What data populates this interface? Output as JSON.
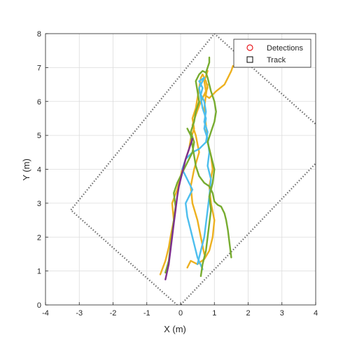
{
  "chart_data": {
    "type": "line",
    "xlabel": "X (m)",
    "ylabel": "Y (m)",
    "xlim": [
      -4,
      4
    ],
    "ylim": [
      0,
      8
    ],
    "xticks": [
      "-4",
      "-3",
      "-2",
      "-1",
      "0",
      "1",
      "2",
      "3",
      "4"
    ],
    "yticks": [
      "0",
      "1",
      "2",
      "3",
      "4",
      "5",
      "6",
      "7",
      "8"
    ],
    "grid": true,
    "legend": {
      "placement": "top-right",
      "entries": [
        {
          "label": "Detections",
          "marker": "circle",
          "color": "#e8191e"
        },
        {
          "label": "Track",
          "marker": "square",
          "color": "#000000"
        }
      ]
    },
    "coverage_boundary": {
      "style": "dotted",
      "color": "#6e6e6e",
      "x": [
        -0.05,
        4.6,
        1.0,
        -3.25,
        -0.05
      ],
      "y": [
        -0.05,
        4.8,
        8.0,
        2.8,
        -0.05
      ]
    },
    "series": [
      {
        "color": "#edb120",
        "x": [
          -0.6,
          -0.45,
          -0.35,
          -0.3,
          -0.2,
          -0.25,
          -0.1,
          0.0,
          0.05,
          0.15,
          0.25,
          0.3,
          0.4,
          0.35,
          0.45,
          0.5,
          0.55,
          0.6,
          0.65,
          0.75,
          0.8,
          0.7,
          0.85,
          1.05,
          1.3,
          1.4,
          1.5,
          1.55
        ],
        "y": [
          0.9,
          1.3,
          1.7,
          2.0,
          2.5,
          3.0,
          3.4,
          3.8,
          4.0,
          4.3,
          4.6,
          4.9,
          5.2,
          5.5,
          5.8,
          6.1,
          6.4,
          6.7,
          6.8,
          6.6,
          6.4,
          6.2,
          6.1,
          6.3,
          6.5,
          6.7,
          6.9,
          7.05
        ]
      },
      {
        "color": "#edb120",
        "x": [
          0.2,
          0.3,
          0.5,
          0.7,
          0.85,
          0.95,
          1.0,
          0.9,
          0.85,
          0.95,
          0.9,
          0.8,
          0.75,
          0.7,
          0.75,
          0.8
        ],
        "y": [
          1.1,
          1.3,
          1.2,
          1.35,
          1.6,
          2.0,
          2.5,
          3.0,
          3.5,
          4.0,
          4.4,
          4.8,
          5.3,
          5.8,
          6.2,
          6.5
        ]
      },
      {
        "color": "#edb120",
        "x": [
          0.7,
          0.6,
          0.5,
          0.35,
          0.3,
          0.4,
          0.55,
          0.45,
          0.35,
          0.45,
          0.6,
          0.75,
          0.7,
          0.8
        ],
        "y": [
          1.5,
          2.0,
          2.5,
          3.0,
          3.5,
          4.0,
          4.5,
          5.0,
          5.3,
          5.6,
          6.0,
          6.3,
          6.6,
          6.9
        ]
      },
      {
        "color": "#4dbeee",
        "x": [
          0.65,
          0.5,
          0.4,
          0.3,
          0.2,
          0.15,
          0.25,
          0.35,
          0.2,
          0.05,
          0.15,
          0.35,
          0.55,
          0.75,
          0.8,
          0.7,
          0.75,
          0.7,
          0.6,
          0.65,
          0.6,
          0.55,
          0.7
        ],
        "y": [
          1.05,
          1.4,
          1.8,
          2.2,
          2.6,
          3.0,
          3.2,
          3.4,
          3.7,
          4.0,
          4.3,
          4.5,
          4.6,
          4.8,
          5.1,
          5.4,
          5.7,
          6.0,
          6.2,
          6.4,
          6.5,
          6.6,
          6.7
        ]
      },
      {
        "color": "#4dbeee",
        "x": [
          0.5,
          0.6,
          0.7,
          0.75,
          0.8,
          0.85,
          0.9,
          0.8,
          0.85,
          0.8,
          0.7,
          0.75,
          0.65,
          0.6,
          0.55,
          0.7
        ],
        "y": [
          1.2,
          1.6,
          2.0,
          2.4,
          2.8,
          3.2,
          3.7,
          4.1,
          4.5,
          4.9,
          5.2,
          5.5,
          5.8,
          6.1,
          6.4,
          6.7
        ]
      },
      {
        "color": "#77ac30",
        "x": [
          -0.45,
          -0.35,
          -0.3,
          -0.25,
          -0.2,
          -0.15,
          -0.2,
          -0.1,
          0.05,
          0.2,
          0.35,
          0.4,
          0.3,
          0.4,
          0.45,
          0.55,
          0.5,
          0.45,
          0.55,
          0.65,
          0.75,
          0.8,
          0.85,
          0.85
        ],
        "y": [
          0.95,
          1.3,
          1.7,
          2.1,
          2.5,
          2.9,
          3.3,
          3.6,
          3.9,
          4.2,
          4.5,
          4.8,
          5.1,
          5.4,
          5.7,
          6.0,
          6.3,
          6.6,
          6.8,
          6.9,
          6.85,
          7.0,
          7.15,
          7.3
        ]
      },
      {
        "color": "#77ac30",
        "x": [
          0.6,
          0.65,
          0.75,
          0.8,
          0.85,
          0.9,
          0.85,
          0.95,
          1.0,
          0.9,
          0.8,
          0.9,
          1.0,
          1.05,
          1.0,
          0.9,
          0.85,
          0.8,
          0.75
        ],
        "y": [
          0.85,
          1.2,
          1.6,
          2.0,
          2.4,
          2.8,
          3.2,
          3.6,
          4.0,
          4.4,
          4.8,
          5.1,
          5.4,
          5.7,
          6.0,
          6.3,
          6.5,
          6.7,
          6.85
        ]
      },
      {
        "color": "#77ac30",
        "x": [
          1.5,
          1.45,
          1.4,
          1.35,
          1.3,
          1.2,
          1.1,
          1.0,
          0.95,
          0.85,
          0.7,
          0.55,
          0.45,
          0.4,
          0.35,
          0.3,
          0.2
        ],
        "y": [
          1.4,
          1.8,
          2.2,
          2.5,
          2.7,
          2.9,
          2.95,
          3.05,
          3.3,
          3.5,
          3.6,
          3.8,
          4.1,
          4.4,
          4.7,
          5.0,
          5.2
        ]
      },
      {
        "color": "#7e2f8e",
        "x": [
          -0.45,
          -0.35,
          -0.3,
          -0.25,
          -0.2,
          -0.15,
          -0.1,
          -0.05,
          0.05,
          0.15,
          0.25,
          0.35
        ],
        "y": [
          0.75,
          1.2,
          1.6,
          2.0,
          2.4,
          2.8,
          3.2,
          3.5,
          3.9,
          4.3,
          4.6,
          4.9
        ]
      }
    ]
  }
}
